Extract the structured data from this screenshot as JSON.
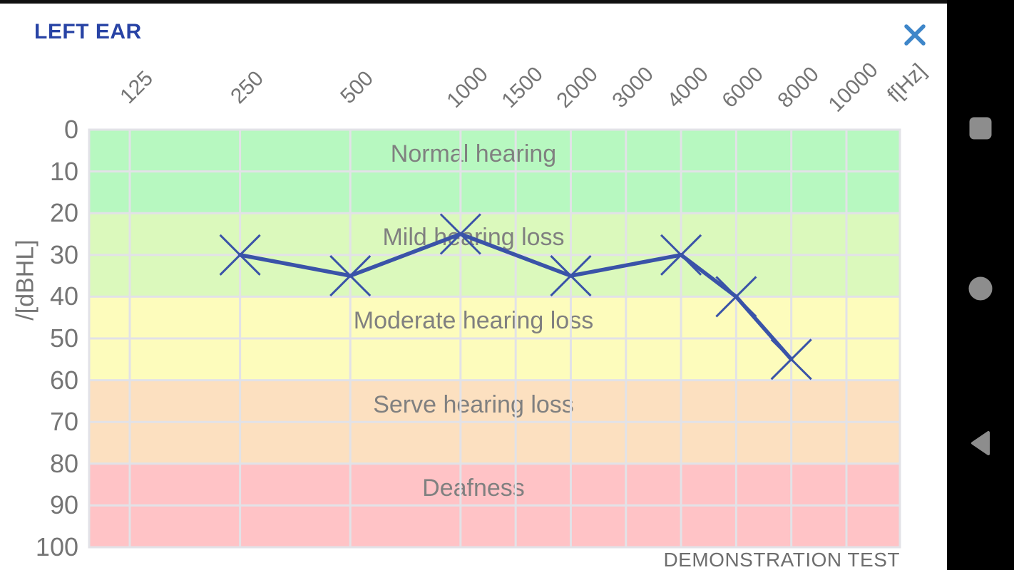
{
  "header": {
    "title": "LEFT EAR"
  },
  "chart_data": {
    "type": "line",
    "title": "",
    "x_axis": {
      "label": "f[Hz]",
      "ticks": [
        125,
        250,
        500,
        1000,
        1500,
        2000,
        3000,
        4000,
        6000,
        8000,
        10000
      ]
    },
    "y_axis": {
      "label": "/[dBHL]",
      "ticks": [
        0,
        10,
        20,
        30,
        40,
        50,
        60,
        70,
        80,
        90,
        100
      ],
      "min": 0,
      "max": 100
    },
    "grid": true,
    "zones": [
      {
        "label": "Normal hearing",
        "from": 0,
        "to": 20,
        "color": "#b7f8c0"
      },
      {
        "label": "Mild hearing loss",
        "from": 20,
        "to": 40,
        "color": "#dbf9bc"
      },
      {
        "label": "Moderate hearing loss",
        "from": 40,
        "to": 60,
        "color": "#fdfcbc"
      },
      {
        "label": "Serve hearing loss",
        "from": 60,
        "to": 80,
        "color": "#fce0c0"
      },
      {
        "label": "Deafness",
        "from": 80,
        "to": 100,
        "color": "#ffc3c6"
      }
    ],
    "series": [
      {
        "name": "left-ear-thresholds",
        "marker": "x",
        "color": "#3a53a8",
        "points": [
          {
            "freq": 250,
            "db": 30
          },
          {
            "freq": 500,
            "db": 35
          },
          {
            "freq": 1000,
            "db": 25
          },
          {
            "freq": 2000,
            "db": 35
          },
          {
            "freq": 4000,
            "db": 30
          },
          {
            "freq": 6000,
            "db": 40
          },
          {
            "freq": 8000,
            "db": 55
          }
        ]
      }
    ],
    "footnote": "DEMONSTRATION TEST"
  },
  "colors": {
    "title": "#2843a5",
    "close_icon": "#3e86c9",
    "axis_text": "#757575",
    "zone_label": "#808080",
    "footnote": "#6e6e6e",
    "gridline": "#e2e2e7",
    "nav_icon": "#8d8d8d",
    "nav_bg": "#000000"
  },
  "navbar": {
    "buttons": [
      {
        "name": "recents",
        "icon": "square"
      },
      {
        "name": "home",
        "icon": "circle"
      },
      {
        "name": "back",
        "icon": "triangle-left"
      }
    ]
  }
}
